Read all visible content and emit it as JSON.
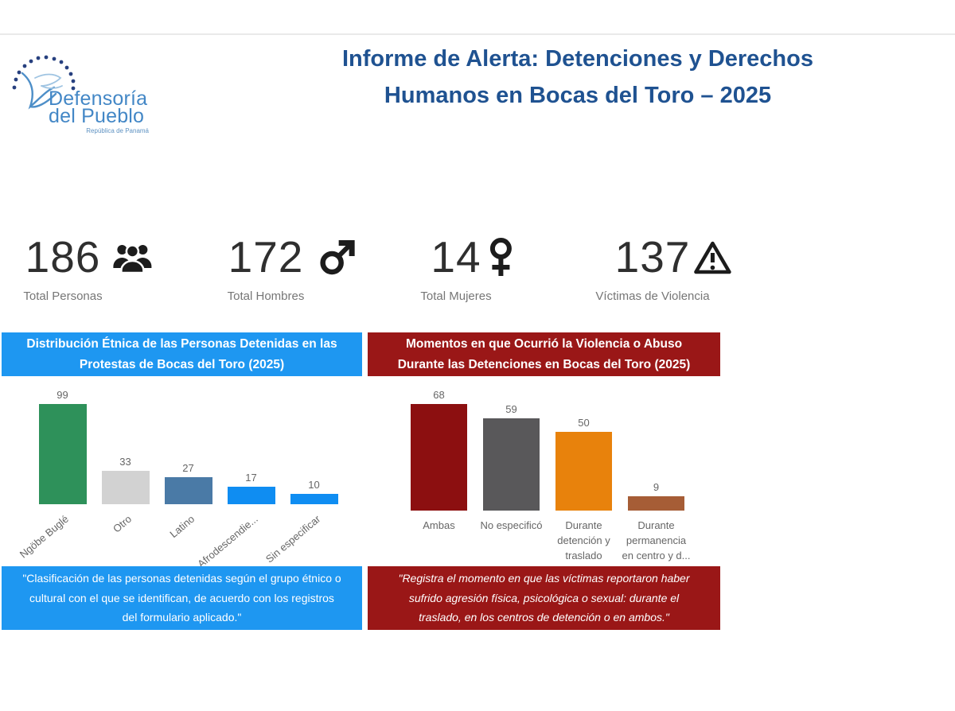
{
  "report": {
    "title_line1": "Informe de Alerta: Detenciones y Derechos",
    "title_line2": "Humanos en Bocas del Toro – 2025",
    "title_color": "#1f5291"
  },
  "logo": {
    "name_line1": "Defensoría",
    "name_line2": "del Pueblo",
    "subtitle": "República de Panamá",
    "text_color": "#4387c6",
    "dots_color": "#27407f",
    "dove_color": "#4e8fc8"
  },
  "kpis": [
    {
      "value": "186",
      "label": "Total Personas",
      "icon": "people-group-icon"
    },
    {
      "value": "172",
      "label": "Total Hombres",
      "icon": "male-icon"
    },
    {
      "value": "14",
      "label": "Total Mujeres",
      "icon": "female-icon"
    },
    {
      "value": "137",
      "label": "Víctimas de Violencia",
      "icon": "warning-icon"
    }
  ],
  "chart_data": [
    {
      "type": "bar",
      "title": "Distribución Étnica de las Personas Detenidas en las Protestas de Bocas del Toro (2025)",
      "categories": [
        "Ngöbe Buglé",
        "Otro",
        "Latino",
        "Afrodescendie...",
        "Sin especificar"
      ],
      "values": [
        99,
        33,
        27,
        17,
        10
      ],
      "bar_colors": [
        "#2e915a",
        "#d2d2d2",
        "#4a7aa6",
        "#0f8df2",
        "#0f8df2"
      ],
      "header_color": "#1e97f1",
      "footer_color": "#1e97f1",
      "value_labels": true,
      "grid": false,
      "ylim": [
        0,
        110
      ],
      "footnote": "\"Clasificación de las personas detenidas según el grupo étnico o cultural con el que se identifican, de acuerdo con los registros del formulario aplicado.\""
    },
    {
      "type": "bar",
      "title": "Momentos en que Ocurrió la Violencia o Abuso Durante las Detenciones en Bocas del Toro (2025)",
      "categories": [
        "Ambas",
        "No especificó",
        "Durante detención y traslado",
        "Durante permanencia en centro y d..."
      ],
      "values": [
        68,
        59,
        50,
        9
      ],
      "bar_colors": [
        "#8c0f10",
        "#59585a",
        "#e8820c",
        "#a65d36"
      ],
      "header_color": "#9a1717",
      "footer_color": "#9a1717",
      "value_labels": true,
      "grid": false,
      "ylim": [
        0,
        75
      ],
      "footnote": "\"Registra el momento en que las víctimas reportaron haber sufrido agresión física, psicológica o sexual: durante el traslado, en los centros de detención o en ambos.\""
    }
  ]
}
